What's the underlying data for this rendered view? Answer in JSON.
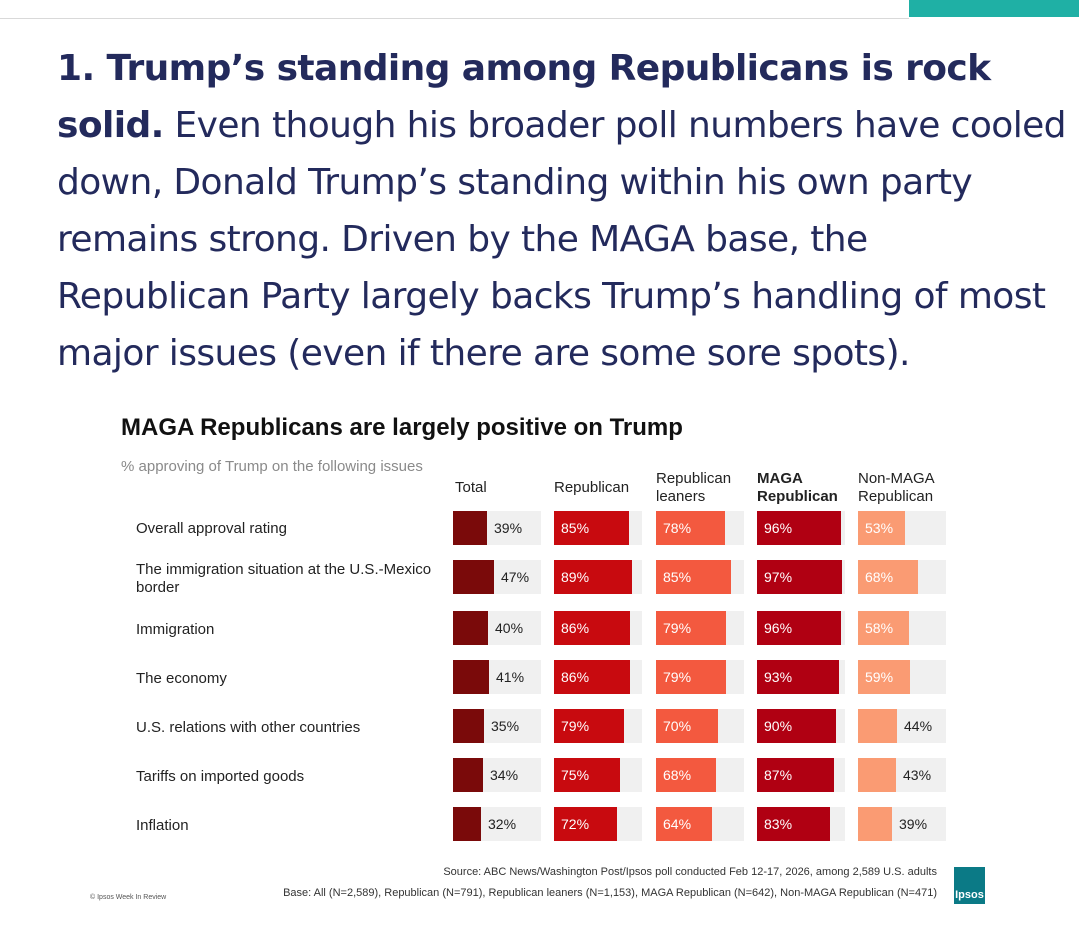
{
  "headline": {
    "lead": "1. ",
    "bold": "Trump’s standing among Republicans is rock solid.",
    "body": " Even though his broader poll numbers have cooled down, Donald Trump’s standing within his own party remains strong. Driven by the MAGA base, the Republican Party largely backs Trump’s handling of most major issues (even if there are some sore spots)."
  },
  "chart_data": {
    "type": "bar",
    "title": "MAGA Republicans are largely positive on Trump",
    "subtitle": "% approving of Trump on the following issues",
    "categories": [
      "Overall approval rating",
      "The immigration situation at the U.S.-Mexico border",
      "Immigration",
      "The economy",
      "U.S. relations with other countries",
      "Tariffs on imported goods",
      "Inflation"
    ],
    "xlim": [
      0,
      100
    ],
    "series": [
      {
        "name": "Total",
        "color": "#7a0a0a",
        "values": [
          39,
          47,
          40,
          41,
          35,
          34,
          32
        ],
        "labels": [
          "39%",
          "47%",
          "40%",
          "41%",
          "35%",
          "34%",
          "32%"
        ]
      },
      {
        "name": "Republican",
        "color": "#c80a0f",
        "values": [
          85,
          89,
          86,
          86,
          79,
          75,
          72
        ],
        "labels": [
          "85%",
          "89%",
          "86%",
          "86%",
          "79%",
          "75%",
          "72%"
        ]
      },
      {
        "name": "Republican leaners",
        "color": "#f3593f",
        "values": [
          78,
          85,
          79,
          79,
          70,
          68,
          64
        ],
        "labels": [
          "78%",
          "85%",
          "79%",
          "79%",
          "70%",
          "68%",
          "64%"
        ]
      },
      {
        "name": "MAGA Republican",
        "color": "#b00012",
        "values": [
          96,
          97,
          96,
          93,
          90,
          87,
          83
        ],
        "labels": [
          "96%",
          "97%",
          "96%",
          "93%",
          "90%",
          "87%",
          "83%"
        ]
      },
      {
        "name": "Non-MAGA Republican",
        "color": "#fa9b73",
        "values": [
          53,
          68,
          58,
          59,
          44,
          43,
          39
        ],
        "labels": [
          "53%",
          "68%",
          "58%",
          "59%",
          "44%",
          "43%",
          "39%"
        ]
      }
    ]
  },
  "column_headers": {
    "total": "Total",
    "republican": "Republican",
    "leaners_1": "Republican",
    "leaners_2": "leaners",
    "maga_1": "MAGA",
    "maga_2": "Republican",
    "nonmaga_1": "Non-MAGA",
    "nonmaga_2": "Republican"
  },
  "row_labels": {
    "r0": "Overall approval rating",
    "r1a": "The immigration situation at the U.S.-Mexico",
    "r1b": "border",
    "r2": "Immigration",
    "r3": "The economy",
    "r4": "U.S. relations with other countries",
    "r5": "Tariffs on imported goods",
    "r6": "Inflation"
  },
  "footer": {
    "source": "Source: ABC News/Washington Post/Ipsos poll conducted Feb 12-17, 2026, among 2,589 U.S. adults",
    "base": "Base: All (N=2,589), Republican (N=791), Republican leaners (N=1,153), MAGA Republican (N=642), Non-MAGA Republican (N=471)",
    "credit": "© Ipsos Week In Review",
    "logo_text": "Ipsos"
  }
}
